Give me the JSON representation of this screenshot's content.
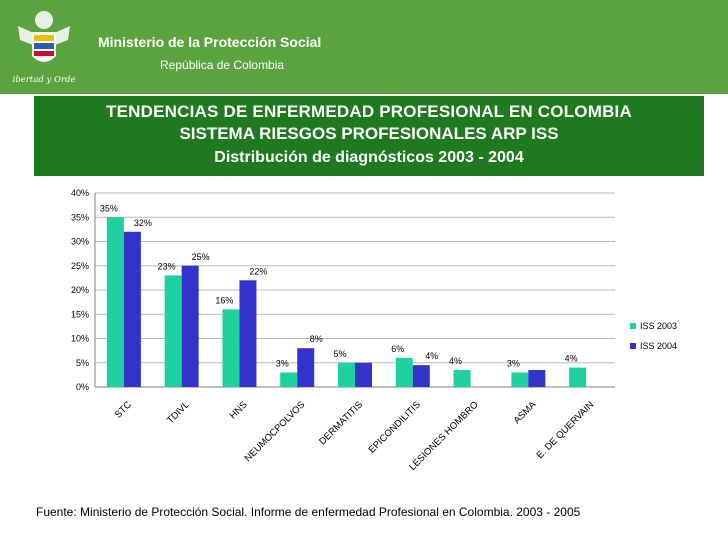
{
  "header": {
    "ministry": "Ministerio de la Protección Social",
    "republic": "República de Colombia",
    "motto": "Libertad y Orden",
    "background_color": "#5aa33f"
  },
  "title": {
    "line1": "TENDENCIAS DE ENFERMEDAD PROFESIONAL EN COLOMBIA",
    "line2": "SISTEMA RIESGOS PROFESIONALES ARP ISS",
    "line3": "Distribución de diagnósticos 2003 - 2004",
    "background_color": "#1f7a1f"
  },
  "chart_data": {
    "type": "bar",
    "title": "",
    "xlabel": "",
    "ylabel": "",
    "ylim": [
      0,
      40
    ],
    "yticks": [
      "0%",
      "5%",
      "10%",
      "15%",
      "20%",
      "25%",
      "30%",
      "35%",
      "40%"
    ],
    "grid": true,
    "legend_position": "right",
    "categories": [
      "STC",
      "TDIVL",
      "HNS",
      "NEUMOCPOLVOS",
      "DERMATITIS",
      "EPICONDILITIS",
      "LESIONES HOMBRO",
      "ASMA",
      "E. DE QUERVAIN"
    ],
    "series": [
      {
        "name": "ISS 2003",
        "color": "#1fd1a0",
        "values": [
          35,
          23,
          16,
          3,
          5,
          6,
          3.5,
          3,
          4
        ],
        "labels": [
          "35%",
          "23%",
          "16%",
          "3%",
          "5%",
          "6%",
          "4%",
          "3%",
          "4%"
        ]
      },
      {
        "name": "ISS 2004",
        "color": "#3333cc",
        "values": [
          32,
          25,
          22,
          8,
          5,
          4.5,
          null,
          3.5,
          null
        ],
        "labels": [
          "32%",
          "25%",
          "22%",
          "8%",
          "",
          "4%",
          "",
          "",
          ""
        ]
      }
    ]
  },
  "source": "Fuente: Ministerio de Protección Social. Informe de enfermedad Profesional en Colombia. 2003 - 2005"
}
